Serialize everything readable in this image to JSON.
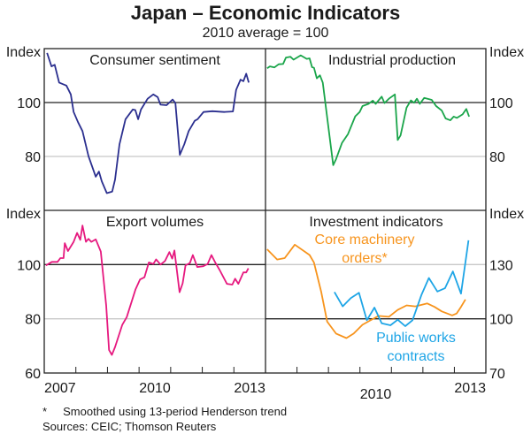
{
  "title": "Japan – Economic Indicators",
  "subtitle": "2010 average = 100",
  "footnote": "*     Smoothed using 13-period Henderson trend",
  "sources": "Sources: CEIC; Thomson Reuters",
  "axis_unit": "Index",
  "chart_data": [
    {
      "type": "line",
      "title": "Consumer sentiment",
      "ylabel": "Index",
      "ylim": [
        60,
        120
      ],
      "xlim": [
        2007,
        2014
      ],
      "yticks": [
        80,
        100
      ],
      "xtick_labels": [
        "2007",
        "2010",
        "2013"
      ],
      "series": [
        {
          "color": "#2b2f8f",
          "x": [
            2007.09,
            2007.23,
            2007.33,
            2007.47,
            2007.7,
            2007.84,
            2007.93,
            2008.07,
            2008.21,
            2008.4,
            2008.63,
            2008.73,
            2008.82,
            2008.98,
            2009.15,
            2009.24,
            2009.38,
            2009.57,
            2009.8,
            2009.88,
            2009.97,
            2010.06,
            2010.27,
            2010.45,
            2010.59,
            2010.68,
            2010.87,
            2011.06,
            2011.15,
            2011.29,
            2011.43,
            2011.57,
            2011.76,
            2011.85,
            2012.04,
            2012.32,
            2012.69,
            2012.97,
            2013.07,
            2013.21,
            2013.3,
            2013.39,
            2013.47
          ],
          "y": [
            118.4,
            113.4,
            114,
            107.4,
            106.3,
            103,
            96.5,
            92.7,
            89.4,
            80.1,
            72.5,
            74.4,
            70.8,
            66.4,
            67,
            71.4,
            84.5,
            93.8,
            97.4,
            97.2,
            93.8,
            97.4,
            101.4,
            103,
            102,
            99.2,
            99,
            101.1,
            99.8,
            80.6,
            84.5,
            89.4,
            93.2,
            93.8,
            96.5,
            96.8,
            96.5,
            96.7,
            104.7,
            108.5,
            107.9,
            110.7,
            107.4
          ]
        }
      ]
    },
    {
      "type": "line",
      "title": "Industrial production",
      "ylabel": "Index",
      "ylim": [
        60,
        120
      ],
      "xlim": [
        2007,
        2014
      ],
      "yticks": [
        80,
        100
      ],
      "series": [
        {
          "color": "#1aa54a",
          "x": [
            2007.05,
            2007.14,
            2007.28,
            2007.42,
            2007.56,
            2007.65,
            2007.79,
            2007.89,
            2008.12,
            2008.31,
            2008.4,
            2008.48,
            2008.54,
            2008.63,
            2008.73,
            2008.82,
            2009.15,
            2009.24,
            2009.43,
            2009.62,
            2009.85,
            2009.99,
            2010.08,
            2010.27,
            2010.41,
            2010.5,
            2010.69,
            2010.78,
            2010.92,
            2011.11,
            2011.2,
            2011.29,
            2011.48,
            2011.62,
            2011.72,
            2011.81,
            2011.9,
            2012.04,
            2012.28,
            2012.42,
            2012.6,
            2012.72,
            2012.87,
            2012.98,
            2013.08,
            2013.26,
            2013.38,
            2013.47
          ],
          "y": [
            112.7,
            113.4,
            113,
            114.2,
            114.3,
            116.7,
            117,
            115.9,
            117.5,
            116.2,
            116.4,
            113.1,
            112.9,
            109,
            110.1,
            107.4,
            76.8,
            79,
            85,
            88.3,
            94.9,
            96.5,
            98.7,
            99.5,
            100.7,
            99.5,
            102.2,
            99.8,
            101.4,
            103,
            86.1,
            87.8,
            98.1,
            100.8,
            99.9,
            101.4,
            99.5,
            101.7,
            101,
            98.7,
            97,
            94.1,
            93.4,
            94.8,
            94.3,
            95.6,
            97.6,
            94.8
          ]
        }
      ]
    },
    {
      "type": "line",
      "title": "Export volumes",
      "ylabel": "Index",
      "ylim": [
        60,
        120
      ],
      "xlim": [
        2007,
        2014
      ],
      "yticks": [
        60,
        80,
        100
      ],
      "xtick_labels": [
        "2007",
        "2010",
        "2013"
      ],
      "series": [
        {
          "color": "#e6197f",
          "x": [
            2007.05,
            2007.24,
            2007.42,
            2007.51,
            2007.61,
            2007.65,
            2007.75,
            2007.93,
            2008.04,
            2008.14,
            2008.21,
            2008.32,
            2008.4,
            2008.49,
            2008.63,
            2008.79,
            2008.96,
            2009.05,
            2009.14,
            2009.24,
            2009.47,
            2009.61,
            2009.89,
            2010.03,
            2010.17,
            2010.31,
            2010.45,
            2010.54,
            2010.68,
            2010.82,
            2010.96,
            2011.05,
            2011.12,
            2011.28,
            2011.38,
            2011.47,
            2011.61,
            2011.7,
            2011.84,
            2012.03,
            2012.17,
            2012.29,
            2012.41,
            2012.55,
            2012.78,
            2012.95,
            2013.04,
            2013.14,
            2013.3,
            2013.39,
            2013.46
          ],
          "y": [
            99.7,
            101,
            101,
            102.4,
            102.4,
            107.9,
            105,
            108.4,
            111.7,
            109.1,
            114.4,
            108.4,
            109.5,
            108.4,
            109.3,
            104.8,
            84.9,
            68.5,
            66.7,
            69.6,
            77.8,
            80.6,
            90.9,
            94.5,
            95.3,
            100.8,
            100.2,
            101.9,
            100,
            101.3,
            104.6,
            102.2,
            105.2,
            89.8,
            93.1,
            99.7,
            100.6,
            103.5,
            99.1,
            99.4,
            100.2,
            103.5,
            100.8,
            98,
            92.9,
            92.6,
            94.8,
            92.9,
            97.1,
            97.1,
            98.6
          ]
        }
      ]
    },
    {
      "type": "line",
      "title": "Investment indicators",
      "ylabel": "Index",
      "ylim": [
        70,
        160
      ],
      "xlim": [
        2007,
        2014
      ],
      "yticks": [
        70,
        100,
        130
      ],
      "xtick_labels": [
        "2010",
        "2013"
      ],
      "series": [
        {
          "name": "Core machinery orders*",
          "color": "#f7941d",
          "x": [
            2007.05,
            2007.37,
            2007.61,
            2007.93,
            2008.4,
            2008.54,
            2008.77,
            2008.96,
            2009.24,
            2009.57,
            2009.8,
            2010.08,
            2010.31,
            2010.59,
            2010.92,
            2011.2,
            2011.48,
            2011.76,
            2012.14,
            2012.37,
            2012.6,
            2012.93,
            2013.07,
            2013.21,
            2013.35
          ],
          "y": [
            138.5,
            132.8,
            133.6,
            141,
            135.3,
            131.1,
            114.8,
            98.4,
            91.8,
            89.3,
            91.8,
            96.7,
            98.9,
            101.6,
            101.1,
            104.9,
            107.4,
            106.9,
            108.5,
            106.6,
            104.1,
            101.9,
            102.9,
            106.6,
            110.7
          ]
        },
        {
          "name": "Public works contracts",
          "color": "#1ea5e6",
          "x": [
            2009.19,
            2009.45,
            2009.71,
            2009.97,
            2010.22,
            2010.46,
            2010.69,
            2010.97,
            2011.2,
            2011.44,
            2011.67,
            2011.95,
            2012.19,
            2012.46,
            2012.7,
            2012.95,
            2013.21,
            2013.45
          ],
          "y": [
            114.8,
            106.9,
            111.5,
            114.4,
            99.2,
            106.2,
            97.5,
            96.4,
            99.5,
            95.9,
            99.2,
            113.1,
            122.6,
            115.1,
            116.9,
            126.2,
            113.9,
            143.4
          ]
        }
      ]
    }
  ]
}
